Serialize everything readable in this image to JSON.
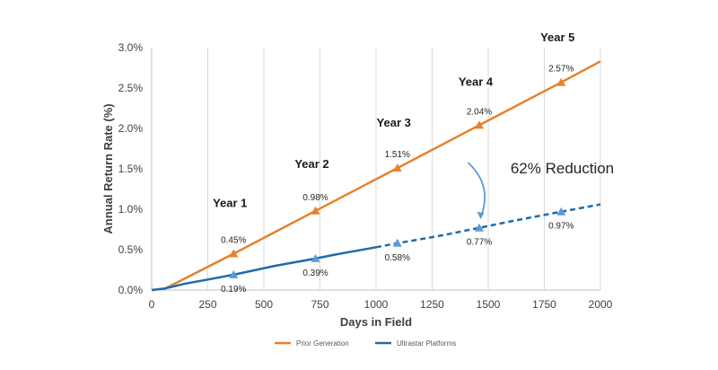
{
  "chart_data": {
    "type": "line",
    "xlabel": "Days in Field",
    "ylabel": "Annual Return Rate (%)",
    "xlim": [
      0,
      2000
    ],
    "ylim": [
      0,
      3.0
    ],
    "x_ticks": [
      0,
      250,
      500,
      750,
      1000,
      1250,
      1500,
      1750,
      2000
    ],
    "y_ticks": [
      0,
      0.5,
      1.0,
      1.5,
      2.0,
      2.5,
      3.0
    ],
    "x_tick_labels": [
      "0",
      "250",
      "500",
      "750",
      "1000",
      "1250",
      "1500",
      "1750",
      "2000"
    ],
    "y_tick_labels": [
      "0.0%",
      "0.5%",
      "1.0%",
      "1.5%",
      "2.0%",
      "2.5%",
      "3.0%"
    ],
    "grid": "vertical",
    "legend_position": "bottom",
    "series": [
      {
        "name": "Prior Generation",
        "color": "#E8812A",
        "line_style": "solid",
        "points": [
          [
            0,
            0
          ],
          [
            60,
            0.02
          ],
          [
            365,
            0.45
          ],
          [
            730,
            0.98
          ],
          [
            1095,
            1.51
          ],
          [
            1460,
            2.04
          ],
          [
            1825,
            2.57
          ],
          [
            2000,
            2.83
          ]
        ],
        "markers": [
          {
            "x": 365,
            "y": 0.45,
            "label": "0.45%"
          },
          {
            "x": 730,
            "y": 0.98,
            "label": "0.98%"
          },
          {
            "x": 1095,
            "y": 1.51,
            "label": "1.51%"
          },
          {
            "x": 1460,
            "y": 2.04,
            "label": "2.04%"
          },
          {
            "x": 1825,
            "y": 2.57,
            "label": "2.57%"
          }
        ]
      },
      {
        "name": "Ultrastar Platforms",
        "color": "#1F6AAE",
        "marker_color": "#5B9BD5",
        "solid_until": 1000,
        "points": [
          [
            0,
            0
          ],
          [
            60,
            0.02
          ],
          [
            150,
            0.08
          ],
          [
            250,
            0.13
          ],
          [
            365,
            0.19
          ],
          [
            450,
            0.24
          ],
          [
            550,
            0.3
          ],
          [
            650,
            0.35
          ],
          [
            730,
            0.39
          ],
          [
            820,
            0.44
          ],
          [
            900,
            0.48
          ],
          [
            1000,
            0.53
          ],
          [
            1095,
            0.58
          ],
          [
            1200,
            0.63
          ],
          [
            1300,
            0.68
          ],
          [
            1460,
            0.77
          ],
          [
            1600,
            0.85
          ],
          [
            1825,
            0.97
          ],
          [
            2000,
            1.06
          ]
        ],
        "markers": [
          {
            "x": 365,
            "y": 0.19,
            "label": "0.19%"
          },
          {
            "x": 730,
            "y": 0.39,
            "label": "0.39%"
          },
          {
            "x": 1095,
            "y": 0.58,
            "label": "0.58%"
          },
          {
            "x": 1460,
            "y": 0.77,
            "label": "0.77%"
          },
          {
            "x": 1825,
            "y": 0.97,
            "label": "0.97%"
          }
        ]
      }
    ],
    "annotations": {
      "years": [
        {
          "text": "Year 1",
          "x": 365,
          "y": 1.03
        },
        {
          "text": "Year 2",
          "x": 730,
          "y": 1.51
        },
        {
          "text": "Year 3",
          "x": 1095,
          "y": 2.02
        },
        {
          "text": "Year 4",
          "x": 1460,
          "y": 2.53
        },
        {
          "text": "Year 5",
          "x": 1825,
          "y": 3.08
        }
      ],
      "reduction": {
        "text": "62% Reduction",
        "x": 1410,
        "y": 1.51
      }
    }
  }
}
